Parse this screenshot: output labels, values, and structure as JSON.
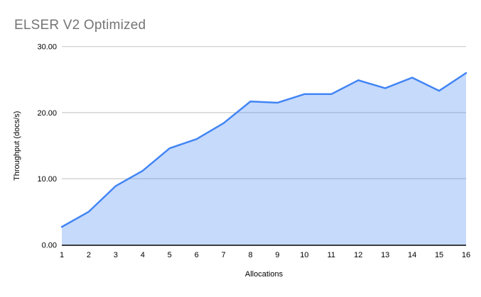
{
  "chart_data": {
    "type": "area",
    "title": "ELSER V2 Optimized",
    "xlabel": "Allocations",
    "ylabel": "Throughput (docs/s)",
    "categories": [
      "1",
      "2",
      "3",
      "4",
      "5",
      "6",
      "7",
      "8",
      "9",
      "10",
      "11",
      "12",
      "13",
      "14",
      "15",
      "16"
    ],
    "series": [
      {
        "values": [
          2.7,
          5.0,
          8.9,
          11.2,
          14.6,
          16.0,
          18.4,
          21.7,
          21.5,
          22.8,
          22.8,
          24.9,
          23.7,
          25.3,
          23.3,
          26.0
        ]
      }
    ],
    "ylim": [
      0,
      30
    ],
    "y_ticks": [
      {
        "value": 0,
        "label": "0.00"
      },
      {
        "value": 10,
        "label": "10.00"
      },
      {
        "value": 20,
        "label": "20.00"
      },
      {
        "value": 30,
        "label": "30.00"
      }
    ],
    "grid": "horizontal",
    "legend": "none",
    "colors": {
      "line": "#4285f4",
      "fill": "#4285f4",
      "fill_opacity": 0.3,
      "gridline": "#cccccc",
      "axis_line": "#000000",
      "tick_label": "#000000",
      "title": "#757575"
    }
  }
}
